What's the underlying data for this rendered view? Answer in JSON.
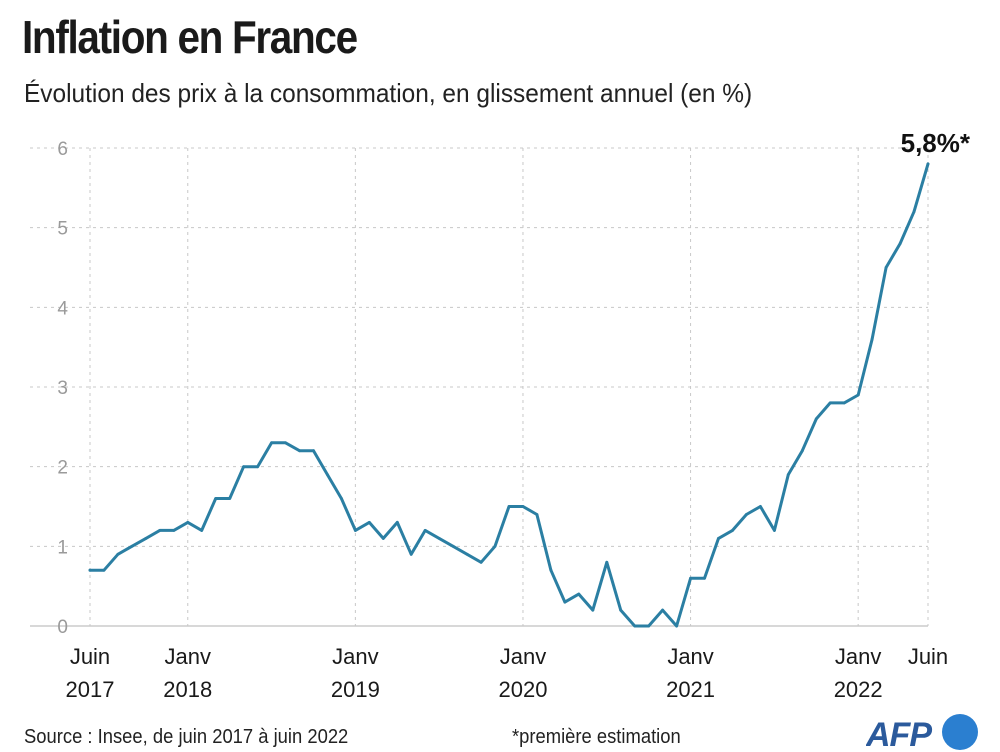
{
  "header": {
    "title": "Inflation en France",
    "subtitle": "Évolution des prix à la consommation, en glissement annuel (en %)"
  },
  "footer": {
    "source": "Source : Insee, de juin 2017 à juin 2022",
    "footnote": "*première estimation",
    "logo_text": "AFP"
  },
  "colors": {
    "line": "#2b7fa3",
    "grid": "#c8c8c8",
    "tick_text": "#9a9a9a",
    "axis_text": "#1a1a1a"
  },
  "chart_data": {
    "type": "line",
    "title": "Inflation en France",
    "subtitle": "Évolution des prix à la consommation, en glissement annuel (en %)",
    "xlabel": "",
    "ylabel": "",
    "ylim": [
      0,
      6
    ],
    "yticks": [
      0,
      1,
      2,
      3,
      4,
      5,
      6
    ],
    "grid": "horizontal dotted",
    "x_tick_labels": [
      {
        "month": "2017-06",
        "label": "Juin",
        "year": "2017"
      },
      {
        "month": "2018-01",
        "label": "Janv",
        "year": "2018"
      },
      {
        "month": "2019-01",
        "label": "Janv",
        "year": "2019"
      },
      {
        "month": "2020-01",
        "label": "Janv",
        "year": "2020"
      },
      {
        "month": "2021-01",
        "label": "Janv",
        "year": "2021"
      },
      {
        "month": "2022-01",
        "label": "Janv",
        "year": "2022"
      },
      {
        "month": "2022-06",
        "label": "Juin",
        "year": ""
      }
    ],
    "annotation": {
      "month": "2022-06",
      "text": "5,8%*"
    },
    "x": [
      "2017-06",
      "2017-07",
      "2017-08",
      "2017-09",
      "2017-10",
      "2017-11",
      "2017-12",
      "2018-01",
      "2018-02",
      "2018-03",
      "2018-04",
      "2018-05",
      "2018-06",
      "2018-07",
      "2018-08",
      "2018-09",
      "2018-10",
      "2018-11",
      "2018-12",
      "2019-01",
      "2019-02",
      "2019-03",
      "2019-04",
      "2019-05",
      "2019-06",
      "2019-07",
      "2019-08",
      "2019-09",
      "2019-10",
      "2019-11",
      "2019-12",
      "2020-01",
      "2020-02",
      "2020-03",
      "2020-04",
      "2020-05",
      "2020-06",
      "2020-07",
      "2020-08",
      "2020-09",
      "2020-10",
      "2020-11",
      "2020-12",
      "2021-01",
      "2021-02",
      "2021-03",
      "2021-04",
      "2021-05",
      "2021-06",
      "2021-07",
      "2021-08",
      "2021-09",
      "2021-10",
      "2021-11",
      "2021-12",
      "2022-01",
      "2022-02",
      "2022-03",
      "2022-04",
      "2022-05",
      "2022-06"
    ],
    "series": [
      {
        "values": [
          0.7,
          0.7,
          0.9,
          1.0,
          1.1,
          1.2,
          1.2,
          1.3,
          1.2,
          1.6,
          1.6,
          2.0,
          2.0,
          2.3,
          2.3,
          2.2,
          2.2,
          1.9,
          1.6,
          1.2,
          1.3,
          1.1,
          1.3,
          0.9,
          1.2,
          1.1,
          1.0,
          0.9,
          0.8,
          1.0,
          1.5,
          1.5,
          1.4,
          0.7,
          0.3,
          0.4,
          0.2,
          0.8,
          0.2,
          0.0,
          0.0,
          0.2,
          0.0,
          0.6,
          0.6,
          1.1,
          1.2,
          1.4,
          1.5,
          1.2,
          1.9,
          2.2,
          2.6,
          2.8,
          2.8,
          2.9,
          3.6,
          4.5,
          4.8,
          5.2,
          5.8
        ]
      }
    ]
  }
}
